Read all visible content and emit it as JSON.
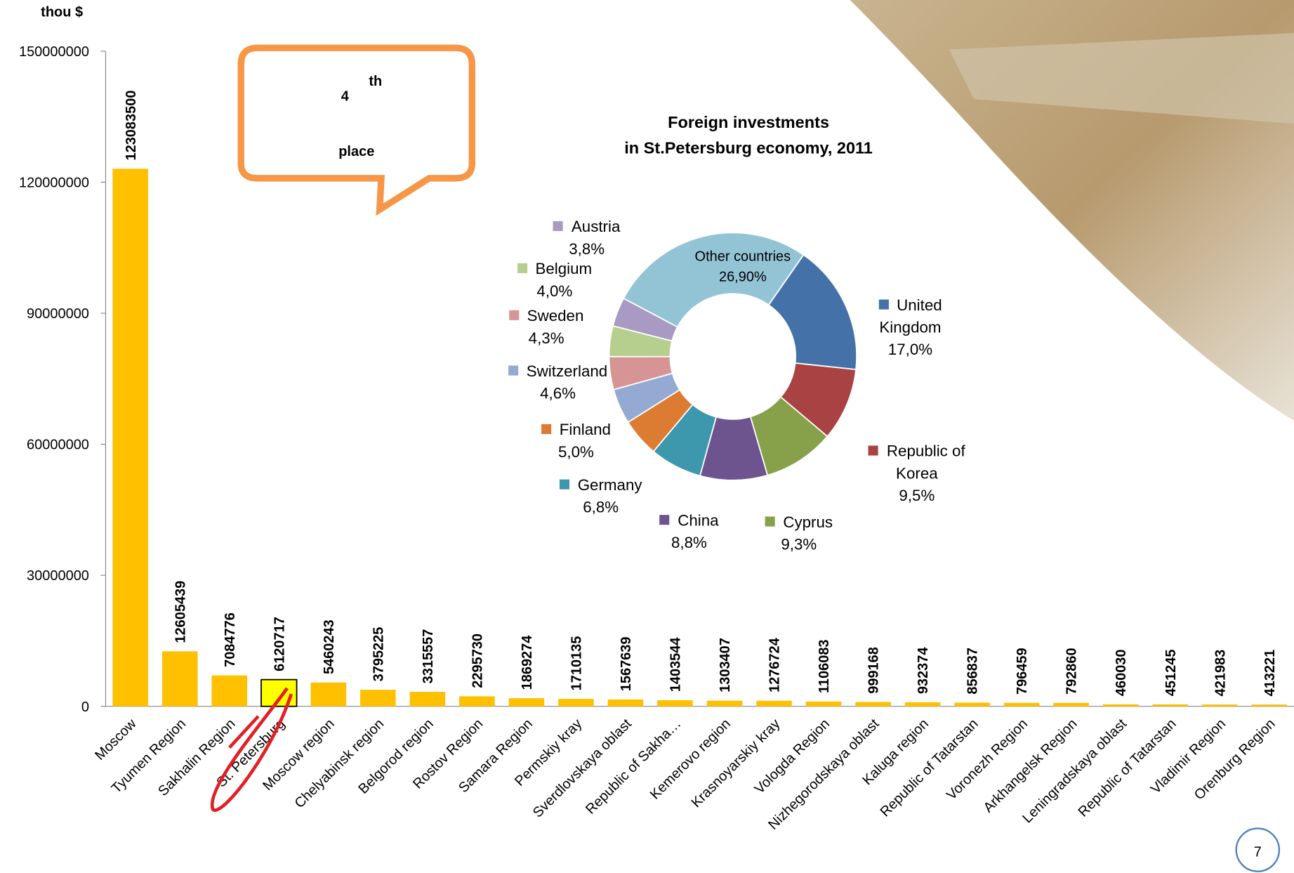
{
  "chart_data": [
    {
      "type": "bar",
      "y_label": "thou $",
      "categories": [
        "Moscow",
        "Tyumen Region",
        "Sakhalin Region",
        "St. Petersburg",
        "Moscow region",
        "Chelyabinsk region",
        "Belgorod region",
        "Rostov Region",
        "Samara Region",
        "Permskiy kray",
        "Sverdlovskaya oblast",
        "Republic of Sakha…",
        "Kemerovo region",
        "Krasnoyarskiy kray",
        "Vologda Region",
        "Nizhegorodskaya oblast",
        "Kaluga region",
        "Republic of Tatarstan",
        "Voronezh Region",
        "Arkhangelsk Region",
        "Leningradskaya oblast",
        "Republic of Tatarstan",
        "Vladimir Region",
        "Orenburg Region"
      ],
      "values": [
        123083500,
        12605439,
        7084776,
        6120717,
        5460243,
        3795225,
        3315557,
        2295730,
        1869274,
        1710135,
        1567639,
        1403544,
        1303407,
        1276724,
        1106083,
        999168,
        932374,
        856837,
        796459,
        792860,
        460030,
        451245,
        421983,
        413221
      ],
      "color": "#ffc000",
      "highlight_index": 3,
      "highlight_color": "#ffff00",
      "ylim": [
        0,
        150000000
      ],
      "yticks": [
        0,
        30000000,
        60000000,
        90000000,
        120000000,
        150000000
      ],
      "annotation": {
        "text": "4",
        "superscript": "th",
        "line2": "place"
      }
    },
    {
      "type": "donut",
      "title": "Foreign investments\nin St.Petersburg economy, 2011",
      "categories": [
        "Other countries",
        "United Kingdom",
        "Republic of Korea",
        "Cyprus",
        "China",
        "Germany",
        "Finland",
        "Switzerland",
        "Sweden",
        "Belgium",
        "Austria"
      ],
      "values": [
        26.9,
        17.0,
        9.5,
        9.3,
        8.8,
        6.8,
        5.0,
        4.6,
        4.3,
        4.0,
        3.8
      ],
      "value_labels": [
        "26,90%",
        "17,0%",
        "9,5%",
        "9,3%",
        "8,8%",
        "6,8%",
        "5,0%",
        "4,6%",
        "4,3%",
        "4,0%",
        "3,8%"
      ],
      "colors": [
        "#93c4d6",
        "#4472a8",
        "#a94343",
        "#86a14a",
        "#6d548f",
        "#3d97ad",
        "#dc7c33",
        "#94aad3",
        "#d69594",
        "#b7cf8e",
        "#a99ac3"
      ]
    }
  ],
  "page_number": "7"
}
